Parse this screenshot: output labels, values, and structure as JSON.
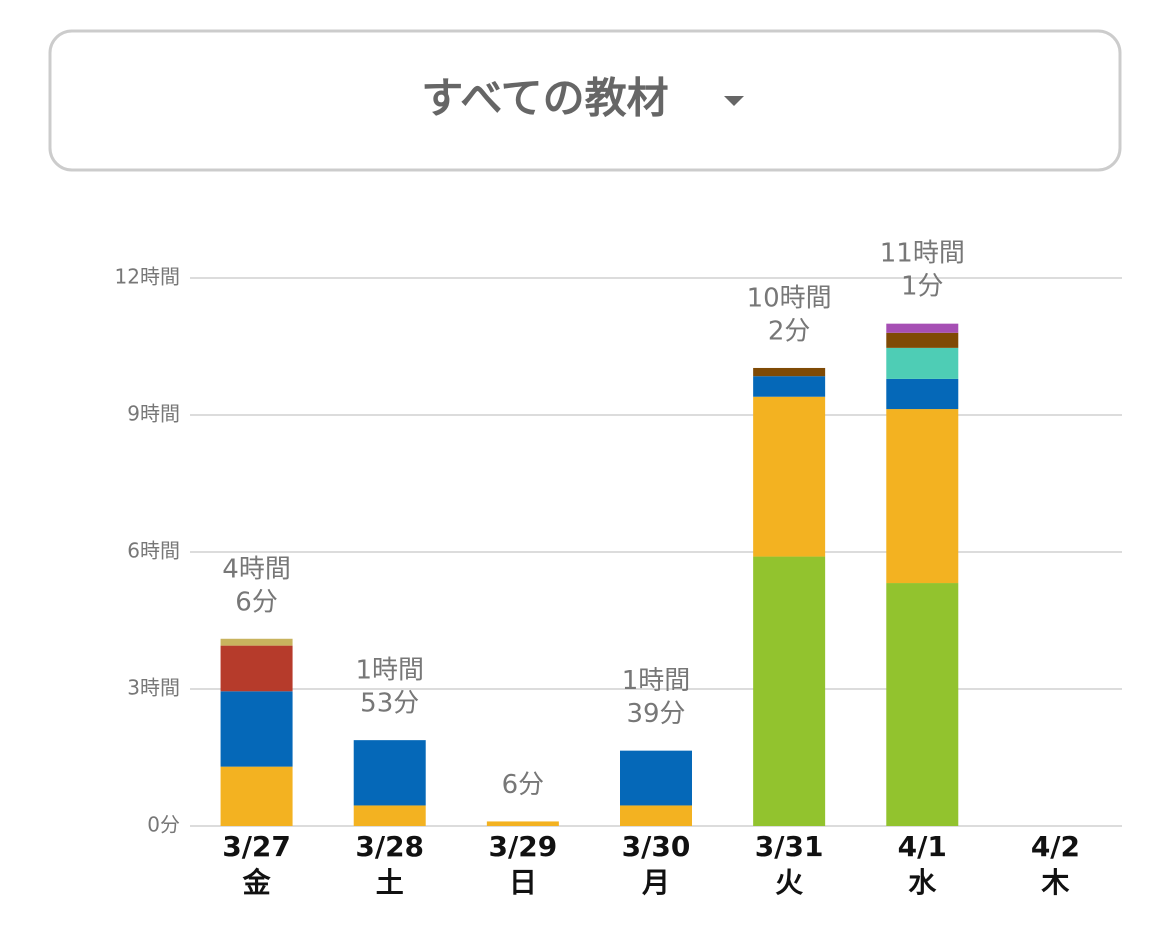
{
  "header": {
    "title": "すべての教材"
  },
  "chart_data": {
    "type": "bar",
    "stacked": true,
    "categories": [
      "3/27",
      "3/28",
      "3/29",
      "3/30",
      "3/31",
      "4/1",
      "4/2"
    ],
    "weekdays": [
      "金",
      "土",
      "日",
      "月",
      "火",
      "水",
      "木"
    ],
    "series": [
      {
        "color": "#92c32e",
        "values": [
          null,
          null,
          null,
          null,
          5.9,
          5.32,
          null
        ]
      },
      {
        "color": "#f3b221",
        "values": [
          1.3,
          0.45,
          0.1,
          0.45,
          3.5,
          3.81,
          null
        ]
      },
      {
        "color": "#0568b8",
        "values": [
          1.65,
          1.43,
          null,
          1.2,
          0.45,
          0.66,
          null
        ]
      },
      {
        "color": "#4ecdb5",
        "values": [
          null,
          null,
          null,
          null,
          null,
          0.68,
          null
        ]
      },
      {
        "color": "#b63b2b",
        "values": [
          1.0,
          null,
          null,
          null,
          null,
          null,
          null
        ]
      },
      {
        "color": "#c8b35e",
        "values": [
          0.15,
          null,
          null,
          null,
          null,
          null,
          null
        ]
      },
      {
        "color": "#7f4a05",
        "values": [
          null,
          null,
          null,
          null,
          0.18,
          0.33,
          null
        ]
      },
      {
        "color": "#a64fb4",
        "values": [
          null,
          null,
          null,
          null,
          null,
          0.2,
          null
        ]
      }
    ],
    "totals": [
      4.1,
      1.883,
      0.1,
      1.65,
      10.033,
      11.017,
      null
    ],
    "value_labels": [
      [
        "4時間",
        "6分"
      ],
      [
        "1時間",
        "53分"
      ],
      [
        "6分"
      ],
      [
        "1時間",
        "39分"
      ],
      [
        "10時間",
        "2分"
      ],
      [
        "11時間",
        "1分"
      ],
      null
    ],
    "ylim": [
      0,
      12
    ],
    "yticks": [
      {
        "value": 0,
        "label": "0分"
      },
      {
        "value": 3,
        "label": "3時間"
      },
      {
        "value": 6,
        "label": "6時間"
      },
      {
        "value": 9,
        "label": "9時間"
      },
      {
        "value": 12,
        "label": "12時間"
      }
    ],
    "grid": true
  }
}
